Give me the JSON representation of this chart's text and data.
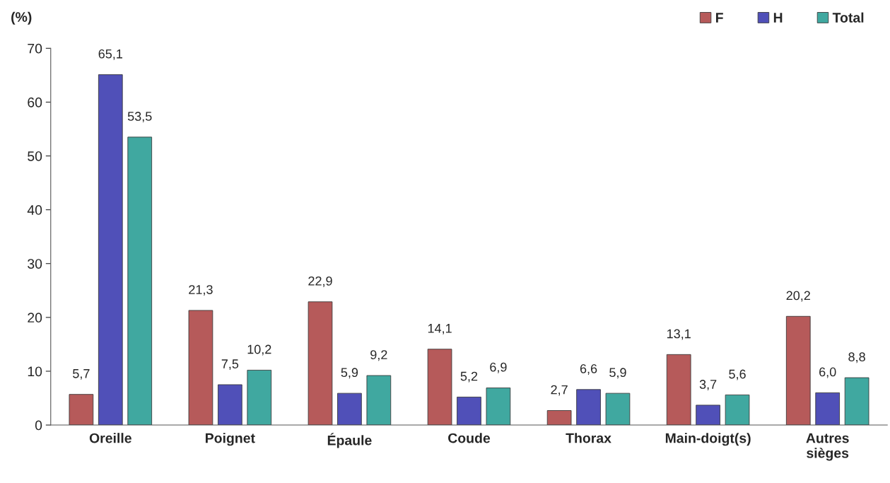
{
  "chart_data": {
    "type": "bar",
    "ylabel": "(%)",
    "categories": [
      "Oreille",
      "Poignet",
      "Épaule",
      "Coude",
      "Thorax",
      "Main-doigt(s)",
      "Autres\nsièges"
    ],
    "series": [
      {
        "name": "F",
        "color": "#b65a5a",
        "values": [
          5.7,
          21.3,
          22.9,
          14.1,
          2.7,
          13.1,
          20.2
        ],
        "value_labels": [
          "5,7",
          "21,3",
          "22,9",
          "14,1",
          "2,7",
          "13,1",
          "20,2"
        ]
      },
      {
        "name": "H",
        "color": "#5050b8",
        "values": [
          65.1,
          7.5,
          5.9,
          5.2,
          6.6,
          3.7,
          6.0
        ],
        "value_labels": [
          "65,1",
          "7,5",
          "5,9",
          "5,2",
          "6,6",
          "3,7",
          "6,0"
        ]
      },
      {
        "name": "Total",
        "color": "#40a8a0",
        "values": [
          53.5,
          10.2,
          9.2,
          6.9,
          5.9,
          5.6,
          8.8
        ],
        "value_labels": [
          "53,5",
          "10,2",
          "9,2",
          "6,9",
          "5,9",
          "5,6",
          "8,8"
        ]
      }
    ],
    "ylim": [
      0,
      70
    ],
    "yticks": [
      0,
      10,
      20,
      30,
      40,
      50,
      60,
      70
    ],
    "grid": false,
    "legend": "top right"
  }
}
